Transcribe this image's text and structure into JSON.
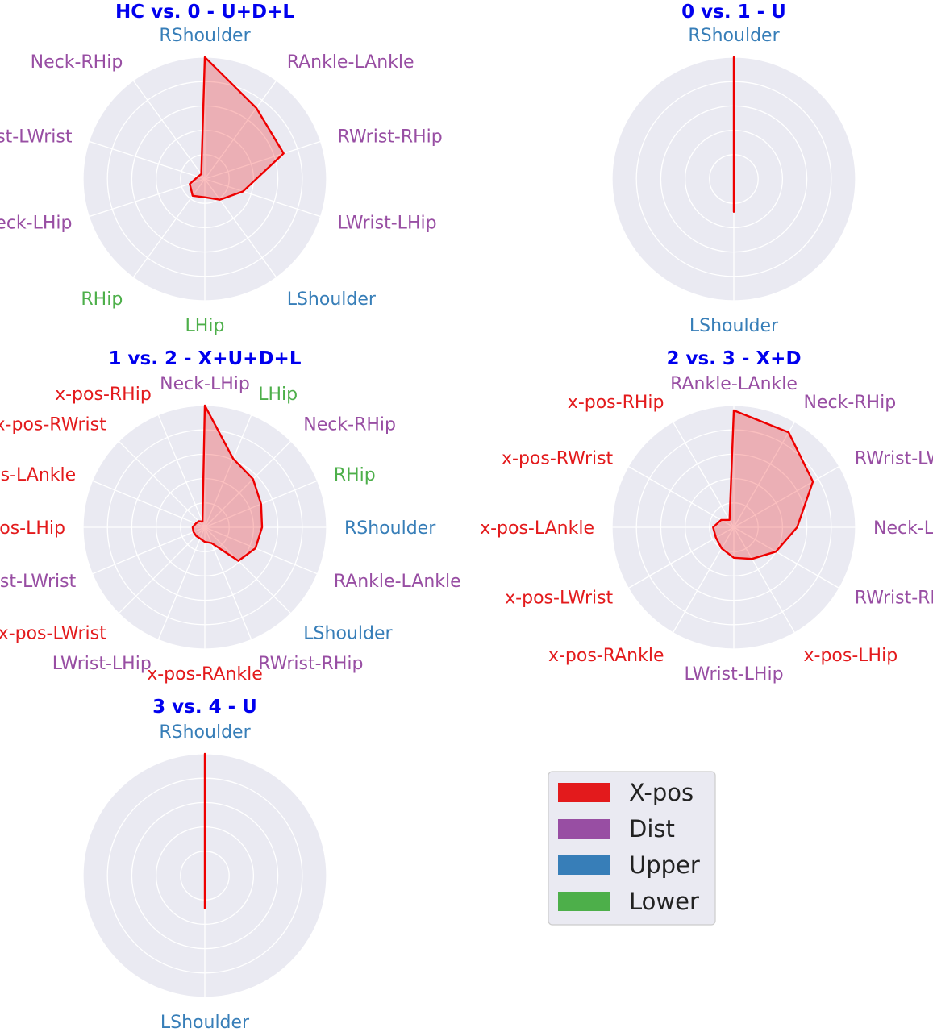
{
  "category_colors": {
    "xpos": "#e31a1c",
    "dist": "#984ea3",
    "upper": "#377eb8",
    "lower": "#4daf4a"
  },
  "series_color": "#ee0000",
  "grid_background": "#eaeaf2",
  "title_color": "#0000ee",
  "legend": [
    {
      "label": "X-pos",
      "category": "xpos"
    },
    {
      "label": "Dist",
      "category": "dist"
    },
    {
      "label": "Upper",
      "category": "upper"
    },
    {
      "label": "Lower",
      "category": "lower"
    }
  ],
  "chart_data": [
    {
      "type": "radar",
      "title": "HC vs. 0 - U+D+L",
      "rlim": [
        0,
        1
      ],
      "grid": true,
      "axes": [
        {
          "label": "RShoulder",
          "category": "upper"
        },
        {
          "label": "RAnkle-LAnkle",
          "category": "dist"
        },
        {
          "label": "RWrist-RHip",
          "category": "dist"
        },
        {
          "label": "LWrist-LHip",
          "category": "dist"
        },
        {
          "label": "LShoulder",
          "category": "upper"
        },
        {
          "label": "LHip",
          "category": "lower"
        },
        {
          "label": "RHip",
          "category": "lower"
        },
        {
          "label": "Neck-LHip",
          "category": "dist"
        },
        {
          "label": "RWrist-LWrist",
          "category": "dist"
        },
        {
          "label": "Neck-RHip",
          "category": "dist"
        }
      ],
      "values": [
        1.0,
        0.72,
        0.68,
        0.33,
        0.21,
        0.15,
        0.17,
        0.13,
        0.06,
        0.05
      ]
    },
    {
      "type": "radar",
      "title": "0 vs. 1 - U",
      "rlim": [
        0,
        1
      ],
      "grid": true,
      "axes": [
        {
          "label": "RShoulder",
          "category": "upper"
        },
        {
          "label": "LShoulder",
          "category": "upper"
        }
      ],
      "values": [
        1.0,
        0.27
      ]
    },
    {
      "type": "radar",
      "title": "1 vs. 2 - X+U+D+L",
      "rlim": [
        0,
        1
      ],
      "grid": true,
      "axes": [
        {
          "label": "Neck-LHip",
          "category": "dist"
        },
        {
          "label": "LHip",
          "category": "lower"
        },
        {
          "label": "Neck-RHip",
          "category": "dist"
        },
        {
          "label": "RHip",
          "category": "lower"
        },
        {
          "label": "RShoulder",
          "category": "upper"
        },
        {
          "label": "RAnkle-LAnkle",
          "category": "dist"
        },
        {
          "label": "LShoulder",
          "category": "upper"
        },
        {
          "label": "RWrist-RHip",
          "category": "dist"
        },
        {
          "label": "x-pos-RAnkle",
          "category": "xpos"
        },
        {
          "label": "LWrist-LHip",
          "category": "dist"
        },
        {
          "label": "x-pos-LWrist",
          "category": "xpos"
        },
        {
          "label": "RWrist-LWrist",
          "category": "dist"
        },
        {
          "label": "x-pos-LHip",
          "category": "xpos"
        },
        {
          "label": "x-pos-LAnkle",
          "category": "xpos"
        },
        {
          "label": "x-pos-RWrist",
          "category": "xpos"
        },
        {
          "label": "x-pos-RHip",
          "category": "xpos"
        }
      ],
      "values": [
        1.0,
        0.61,
        0.56,
        0.5,
        0.47,
        0.45,
        0.39,
        0.14,
        0.12,
        0.1,
        0.1,
        0.1,
        0.1,
        0.08,
        0.07,
        0.05
      ]
    },
    {
      "type": "radar",
      "title": "2 vs. 3 - X+D",
      "rlim": [
        0,
        1
      ],
      "grid": true,
      "axes": [
        {
          "label": "RAnkle-LAnkle",
          "category": "dist"
        },
        {
          "label": "Neck-RHip",
          "category": "dist"
        },
        {
          "label": "RWrist-LWrist",
          "category": "dist"
        },
        {
          "label": "Neck-LHip",
          "category": "dist"
        },
        {
          "label": "RWrist-RHip",
          "category": "dist"
        },
        {
          "label": "x-pos-LHip",
          "category": "xpos"
        },
        {
          "label": "LWrist-LHip",
          "category": "dist"
        },
        {
          "label": "x-pos-RAnkle",
          "category": "xpos"
        },
        {
          "label": "x-pos-LWrist",
          "category": "xpos"
        },
        {
          "label": "x-pos-LAnkle",
          "category": "xpos"
        },
        {
          "label": "x-pos-RWrist",
          "category": "xpos"
        },
        {
          "label": "x-pos-RHip",
          "category": "xpos"
        }
      ],
      "values": [
        0.96,
        0.9,
        0.75,
        0.52,
        0.4,
        0.3,
        0.25,
        0.2,
        0.17,
        0.17,
        0.12,
        0.07
      ]
    },
    {
      "type": "radar",
      "title": "3 vs. 4 - U",
      "rlim": [
        0,
        1
      ],
      "grid": true,
      "axes": [
        {
          "label": "RShoulder",
          "category": "upper"
        },
        {
          "label": "LShoulder",
          "category": "upper"
        }
      ],
      "values": [
        1.0,
        0.27
      ]
    }
  ]
}
